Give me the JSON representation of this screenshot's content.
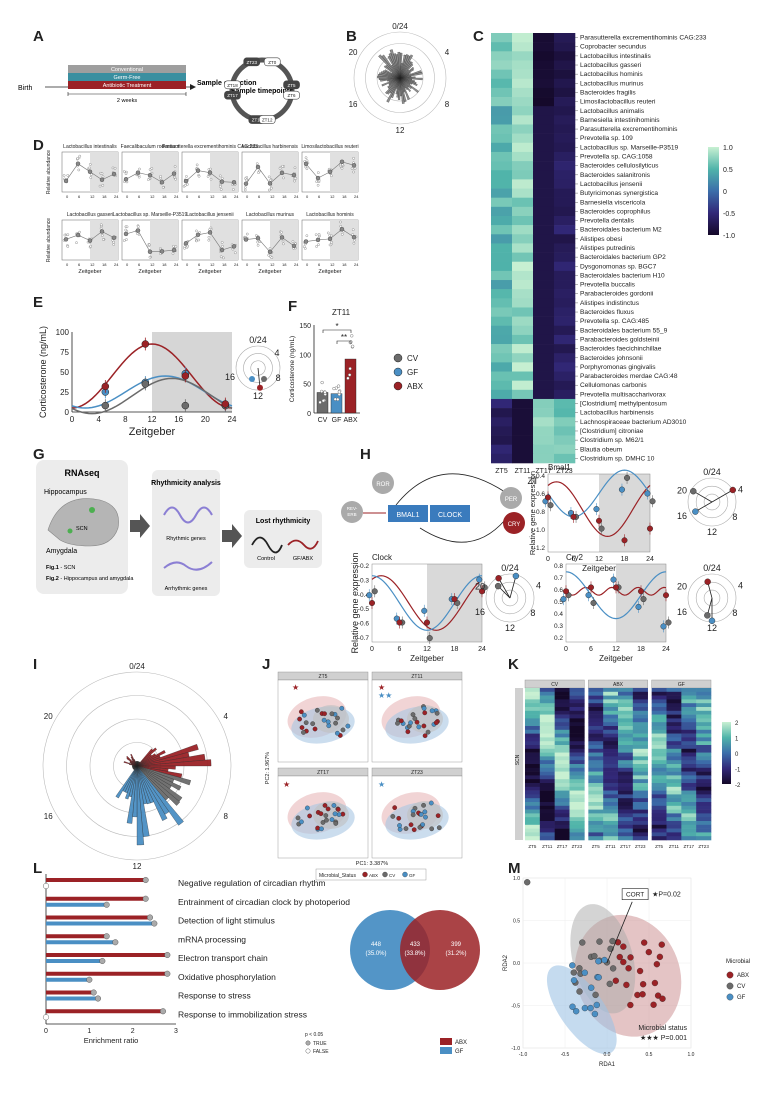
{
  "panels": [
    "A",
    "B",
    "C",
    "D",
    "E",
    "F",
    "G",
    "H",
    "I",
    "J",
    "K",
    "L",
    "M"
  ],
  "panelA": {
    "birth": "Birth",
    "bars": [
      "Conventional",
      "Germ-Free",
      "Antibiotic Treatment"
    ],
    "duration": "2 weeks",
    "sample_collection": "Sample collection",
    "timepoints_label": "Sample timepoints",
    "timepoints": [
      "ZT23",
      "ZT0",
      "ZT5",
      "ZT6",
      "ZT11",
      "ZT12",
      "ZT17",
      "ZT18"
    ],
    "colors": {
      "conv": "#9e9e9e",
      "gf": "#3a8fa0",
      "abx": "#9b2226"
    }
  },
  "panelB": {
    "labels": [
      "0/24",
      "4",
      "8",
      "12",
      "16",
      "20"
    ]
  },
  "panelC": {
    "species": [
      "Parasutterella excrementihominis CAG:233",
      "Coprobacter secundus",
      "Lactobacillus intestinalis",
      "Lactobacillus gasseri",
      "Lactobacillus hominis",
      "Lactobacillus murinus",
      "Bacteroides fragilis",
      "Limosilactobacillus reuteri",
      "Lactobacillus animalis",
      "Barnesiella intestinihominis",
      "Parasutterella excrementihominis",
      "Prevotella sp. 109",
      "Lactobacillus sp. Marseille-P3519",
      "Prevotella sp. CAG:1058",
      "Bacteroides cellulosilyticus",
      "Bacteroides salanitronis",
      "Lactobacillus jensenii",
      "Butyricimonas synergistica",
      "Barnesiella viscericola",
      "Bacteroides coprophilus",
      "Prevotella dentalis",
      "Bacteroidales bacterium M2",
      "Alistipes obesi",
      "Alistipes putredinis",
      "Bacteroidales bacterium GP2",
      "Dysgonomonas sp. BGC7",
      "Bacteroidales bacterium H10",
      "Prevotella buccalis",
      "Parabacteroides gordonii",
      "Alistipes indistinctus",
      "Bacteroides fluxus",
      "Prevotella sp. CAG:485",
      "Bacteroidales bacterium 55_9",
      "Parabacteroides goldsteinii",
      "Bacteroides faecichinchillae",
      "Bacteroides johnsonii",
      "Porphyromonas gingivalis",
      "Parabacteroides merdae CAG:48",
      "Cellulomonas carbonis",
      "Prevotella multisaccharivorax",
      "[Clostridium] methylpentosum",
      "Lactobacillus harbinensis",
      "Lachnospiraceae bacterium AD3010",
      "[Clostridium] citroniae",
      "Clostridium sp. M62/1",
      "Blautia obeum",
      "Clostridium sp. DMHC 10"
    ],
    "xticks": [
      "ZT5",
      "ZT11",
      "ZT17",
      "ZT23"
    ],
    "xlabel": "ZT",
    "scale": [
      "1.0",
      "0.5",
      "0",
      "-0.5",
      "-1.0"
    ]
  },
  "panelD": {
    "titles": [
      "Lactobacillus intestinalis",
      "Faecalibaculum rodentium",
      "Parasutterella excrementihominis CAG:233",
      "Lactobacillus harbinensis",
      "Limosilactobacillus reuteri",
      "Lactobacillus gasseri",
      "Lactobacillus sp. Marseille-P3519",
      "Lactobacillus jensenii",
      "Lactobacillus murinus",
      "Lactobacillus hominis"
    ],
    "ylabel": "Relative abundance",
    "xlabel": "Zeitgeber",
    "xticks": [
      "0",
      "6",
      "12",
      "18",
      "24"
    ]
  },
  "panelE": {
    "ylabel": "Corticosterone (ng/mL)",
    "xlabel": "Zeitgeber",
    "xticks": [
      "0",
      "4",
      "8",
      "12",
      "16",
      "20",
      "24"
    ],
    "yticks": [
      "0",
      "25",
      "50",
      "75",
      "100"
    ],
    "clock": [
      "0/24",
      "4",
      "8",
      "12",
      "16"
    ]
  },
  "panelF": {
    "title": "ZT11",
    "ylabel": "Corticosterone (ng/mL)",
    "categories": [
      "CV",
      "GF",
      "ABX"
    ],
    "values": [
      35,
      33,
      92
    ],
    "yticks": [
      "0",
      "50",
      "100",
      "150"
    ],
    "sig": [
      "*",
      "**"
    ],
    "legend": [
      "CV",
      "GF",
      "ABX"
    ]
  },
  "panelG": {
    "rnaseq": "RNAseq",
    "regions": [
      "Hippocampus",
      "SCN",
      "Amygdala"
    ],
    "fig1": "Fig.1",
    "fig1_txt": " - SCN",
    "fig2": "Fig.2",
    "fig2_txt": " - Hippocampus and amygdala",
    "rhythm_title": "Rhythmicity analysis",
    "rhythmic": "Rhythmic genes",
    "arrhythmic": "Arrhythmic genes",
    "lost": "Lost rhythmicity",
    "control": "Control",
    "gfabx": "GF/ABX"
  },
  "panelH": {
    "nodes": [
      "ROR",
      "REV-ERB",
      "BMAL1",
      "CLOCK",
      "PER",
      "CRY"
    ],
    "genes": [
      "Bmal1",
      "Clock",
      "Cry2"
    ],
    "ylabel": "Relative gene expression",
    "xlabel": "Zeitgeber",
    "xticks": [
      "0",
      "6",
      "12",
      "18",
      "24"
    ],
    "bmal_yticks": [
      "-0.4",
      "-0.6",
      "-0.8",
      "-1.0",
      "-1.2"
    ],
    "clock_yticks": [
      "-0.2",
      "-0.3",
      "-0.4",
      "-0.5",
      "-0.6",
      "-0.7"
    ],
    "cry_yticks": [
      "0.8",
      "0.7",
      "0.6",
      "0.5",
      "0.4",
      "0.3",
      "0.2"
    ],
    "clock_labels": [
      "0/24",
      "4",
      "8",
      "12",
      "16",
      "20"
    ]
  },
  "panelI": {
    "labels": [
      "0/24",
      "4",
      "8",
      "12",
      "16",
      "20"
    ]
  },
  "panelJ": {
    "facets": [
      "ZT5",
      "ZT11",
      "ZT17",
      "ZT23"
    ],
    "xlabel": "PC1: 3.387%",
    "ylabel": "PC2: 1.967%",
    "legend_title": "Microbial_Status",
    "legend": [
      "ABX",
      "CV",
      "GF"
    ],
    "ticks": [
      "-200",
      "0",
      "200",
      "400"
    ]
  },
  "panelK": {
    "groups": [
      "CV",
      "ABX",
      "GF"
    ],
    "row_label": "SCN",
    "xticks": [
      "ZT5",
      "ZT11",
      "ZT17",
      "ZT23"
    ],
    "scale": [
      "2",
      "1",
      "0",
      "-1",
      "-2"
    ]
  },
  "panelL": {
    "terms": [
      "Negative regulation of circadian rhythm",
      "Entrainment of circadian clock by photoperiod",
      "Detection of light stimulus",
      "mRNA processing",
      "Electron transport chain",
      "Oxidative phosphorylation",
      "Response to stress",
      "Response to immobilization stress"
    ],
    "abx": [
      2.3,
      2.3,
      2.4,
      1.4,
      2.8,
      2.8,
      1.1,
      2.7
    ],
    "gf": [
      0,
      1.4,
      2.5,
      1.6,
      1.3,
      1.0,
      1.2,
      0
    ],
    "xlabel": "Enrichment ratio",
    "xticks": [
      "0",
      "1",
      "2",
      "3"
    ],
    "sig_title": "p < 0.05",
    "sig": [
      "TRUE",
      "FALSE"
    ],
    "venn": {
      "left": "448",
      "left_pct": "(35.0%)",
      "mid": "433",
      "mid_pct": "(33.8%)",
      "right": "399",
      "right_pct": "(31.2%)"
    },
    "venn_legend": [
      "ABX",
      "GF"
    ]
  },
  "panelM": {
    "xlabel": "RDA1",
    "ylabel": "RDA2",
    "cort": "CORT",
    "cort_p": "★P=0.02",
    "status": "Microbial status",
    "status_p": "★★★ P=0.001",
    "legend_title": "Microbial",
    "legend": [
      "ABX",
      "CV",
      "GF"
    ],
    "xticks": [
      "-1.0",
      "-0.5",
      "0.0",
      "0.5",
      "1.0"
    ],
    "yticks": [
      "1.0",
      "0.5",
      "0.0",
      "-0.5",
      "-1.0"
    ]
  }
}
